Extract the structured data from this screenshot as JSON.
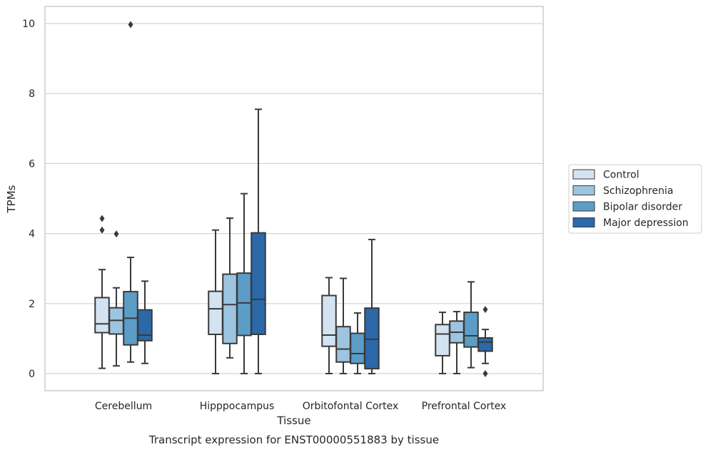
{
  "chart_data": {
    "type": "box",
    "title": "",
    "caption": "Transcript expression for ENST00000551883 by tissue",
    "xlabel": "Tissue",
    "ylabel": "TPMs",
    "ylim": [
      -0.5,
      10.5
    ],
    "yticks": [
      0,
      2,
      4,
      6,
      8,
      10
    ],
    "grid": "horizontal",
    "legend_position": "right",
    "categories": [
      "Cerebellum",
      "Hipppocampus",
      "Orbitofontal Cortex",
      "Prefrontal Cortex"
    ],
    "series": [
      {
        "name": "Control",
        "color": "#d4e3f1",
        "boxes": [
          {
            "min": 0.15,
            "q1": 1.17,
            "median": 1.42,
            "q3": 2.17,
            "max": 2.97,
            "outliers": [
              4.43,
              4.1
            ]
          },
          {
            "min": 0.0,
            "q1": 1.12,
            "median": 1.85,
            "q3": 2.35,
            "max": 4.1,
            "outliers": []
          },
          {
            "min": 0.0,
            "q1": 0.78,
            "median": 1.1,
            "q3": 2.23,
            "max": 2.74,
            "outliers": []
          },
          {
            "min": 0.0,
            "q1": 0.51,
            "median": 1.13,
            "q3": 1.4,
            "max": 1.75,
            "outliers": []
          }
        ]
      },
      {
        "name": "Schizophrenia",
        "color": "#9ec5df",
        "boxes": [
          {
            "min": 0.22,
            "q1": 1.13,
            "median": 1.52,
            "q3": 1.88,
            "max": 2.45,
            "outliers": [
              3.99
            ]
          },
          {
            "min": 0.45,
            "q1": 0.86,
            "median": 1.97,
            "q3": 2.84,
            "max": 4.44,
            "outliers": []
          },
          {
            "min": 0.0,
            "q1": 0.33,
            "median": 0.7,
            "q3": 1.34,
            "max": 2.72,
            "outliers": []
          },
          {
            "min": 0.0,
            "q1": 0.88,
            "median": 1.18,
            "q3": 1.5,
            "max": 1.77,
            "outliers": []
          }
        ]
      },
      {
        "name": "Bipolar disorder",
        "color": "#5c9dc8",
        "boxes": [
          {
            "min": 0.33,
            "q1": 0.82,
            "median": 1.58,
            "q3": 2.34,
            "max": 3.32,
            "outliers": [
              9.97
            ]
          },
          {
            "min": 0.0,
            "q1": 1.09,
            "median": 2.02,
            "q3": 2.87,
            "max": 5.14,
            "outliers": []
          },
          {
            "min": 0.0,
            "q1": 0.29,
            "median": 0.57,
            "q3": 1.15,
            "max": 1.73,
            "outliers": []
          },
          {
            "min": 0.17,
            "q1": 0.76,
            "median": 1.08,
            "q3": 1.75,
            "max": 2.62,
            "outliers": []
          }
        ]
      },
      {
        "name": "Major depression",
        "color": "#2b69a8",
        "boxes": [
          {
            "min": 0.29,
            "q1": 0.94,
            "median": 1.1,
            "q3": 1.82,
            "max": 2.64,
            "outliers": []
          },
          {
            "min": 0.0,
            "q1": 1.12,
            "median": 2.12,
            "q3": 4.02,
            "max": 7.55,
            "outliers": []
          },
          {
            "min": 0.0,
            "q1": 0.14,
            "median": 0.98,
            "q3": 1.87,
            "max": 3.83,
            "outliers": []
          },
          {
            "min": 0.29,
            "q1": 0.64,
            "median": 0.9,
            "q3": 1.02,
            "max": 1.26,
            "outliers": [
              1.83,
              0.0
            ]
          }
        ]
      }
    ]
  }
}
